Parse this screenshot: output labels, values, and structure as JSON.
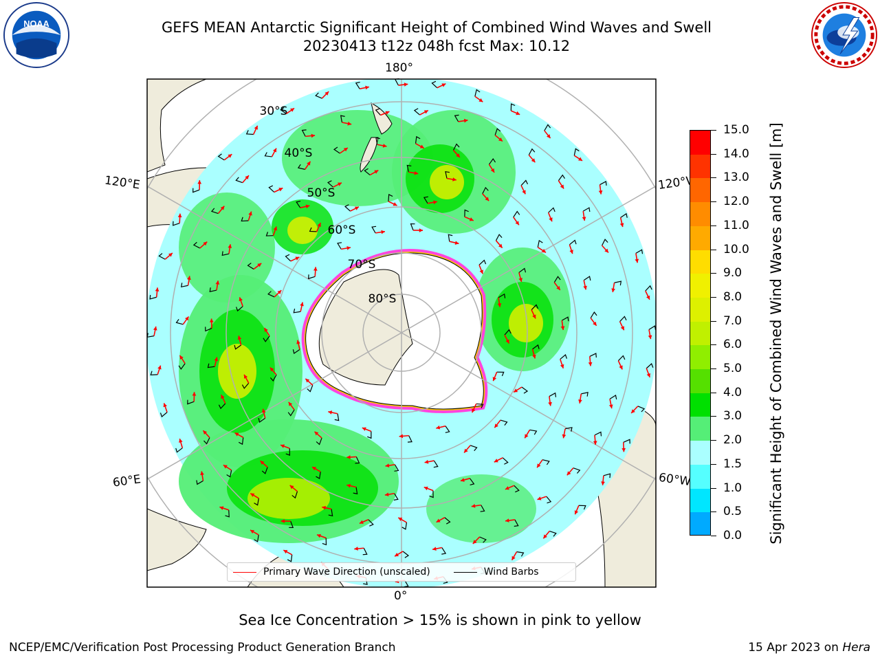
{
  "title_line1": "GEFS MEAN Antarctic Significant Height of Combined Wind Waves and Swell",
  "title_line2": "20230413 t12z 048h fcst   Max: 10.12",
  "logos": {
    "left": "NOAA",
    "right": "NATIONAL WEATHER SERVICE"
  },
  "longitude_labels": {
    "top": "180°",
    "bottom": "0°",
    "left_upper": "120°E",
    "left_lower": "60°E",
    "right_upper": "120°W",
    "right_lower": "60°W"
  },
  "latitude_labels": [
    "30°S",
    "40°S",
    "50°S",
    "60°S",
    "70°S",
    "80°S"
  ],
  "colorbar": {
    "label": "Significant Height of Combined Wind Waves and Swell [m]",
    "ticks": [
      "15.0",
      "14.0",
      "13.0",
      "12.0",
      "11.0",
      "10.0",
      "9.0",
      "8.0",
      "7.0",
      "6.0",
      "5.0",
      "4.0",
      "3.0",
      "2.0",
      "1.5",
      "1.0",
      "0.5",
      "0.0"
    ],
    "colors": [
      "#ff0000",
      "#ff3300",
      "#ff6600",
      "#ff8c00",
      "#ffaa00",
      "#ffdd00",
      "#f0f000",
      "#ddf000",
      "#c0f000",
      "#90ee00",
      "#55e000",
      "#00e000",
      "#55ee77",
      "#aaffff",
      "#55ffff",
      "#00e6ff",
      "#00aaff",
      "#0066ff",
      "#0000ff"
    ]
  },
  "legend": {
    "red_label": "Primary Wave Direction (unscaled)",
    "black_label": "Wind Barbs"
  },
  "footnote": "Sea Ice Concentration > 15% is shown in pink to yellow",
  "credit": "NCEP/EMC/Verification Post Processing Product Generation Branch",
  "date_prefix": "15 Apr 2023 on ",
  "date_machine": "Hera"
}
